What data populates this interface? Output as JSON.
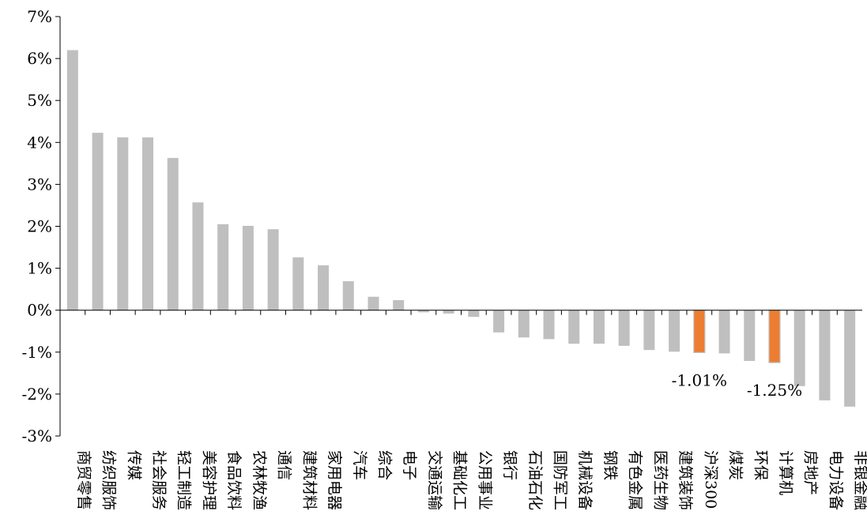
{
  "chart_data": {
    "type": "bar",
    "title": "",
    "xlabel": "",
    "ylabel": "",
    "ylim": [
      -3,
      7
    ],
    "yticks": [
      "7%",
      "6%",
      "5%",
      "4%",
      "3%",
      "2%",
      "1%",
      "0%",
      "-1%",
      "-2%",
      "-3%"
    ],
    "ytick_values": [
      7,
      6,
      5,
      4,
      3,
      2,
      1,
      0,
      -1,
      -2,
      -3
    ],
    "grid": false,
    "legend": "none",
    "categories": [
      "商贸零售",
      "纺织服饰",
      "传媒",
      "社会服务",
      "轻工制造",
      "美容护理",
      "食品饮料",
      "农林牧渔",
      "通信",
      "建筑材料",
      "家用电器",
      "汽车",
      "综合",
      "电子",
      "交通运输",
      "基础化工",
      "公用事业",
      "银行",
      "石油石化",
      "国防军工",
      "机械设备",
      "钢铁",
      "有色金属",
      "医药生物",
      "建筑装饰",
      "沪深300",
      "煤炭",
      "环保",
      "计算机",
      "房地产",
      "电力设备",
      "非银金融"
    ],
    "values": [
      6.2,
      4.23,
      4.12,
      4.12,
      3.63,
      2.57,
      2.05,
      2.01,
      1.93,
      1.26,
      1.07,
      0.69,
      0.32,
      0.24,
      -0.05,
      -0.08,
      -0.16,
      -0.53,
      -0.65,
      -0.69,
      -0.8,
      -0.8,
      -0.85,
      -0.95,
      -0.99,
      -1.01,
      -1.03,
      -1.21,
      -1.25,
      -1.81,
      -2.15,
      -2.3
    ],
    "highlight_categories": [
      "沪深300",
      "计算机"
    ],
    "data_labels": [
      {
        "category": "沪深300",
        "text": "-1.01%"
      },
      {
        "category": "计算机",
        "text": "-1.25%"
      }
    ],
    "colors": {
      "bar": "#bfbfbf",
      "highlight": "#ed7d31",
      "axis": "#000000"
    }
  }
}
